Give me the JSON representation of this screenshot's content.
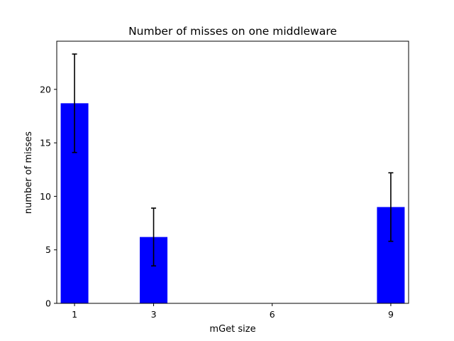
{
  "chart_data": {
    "type": "bar",
    "title": "Number of misses on one middleware",
    "xlabel": "mGet size",
    "ylabel": "number of misses",
    "categories": [
      "1",
      "3",
      "6",
      "9"
    ],
    "x": [
      1,
      3,
      6,
      9
    ],
    "series": [
      {
        "values": [
          18.7,
          6.2,
          0,
          9.0
        ],
        "error": [
          4.6,
          2.7,
          0,
          3.2
        ],
        "color": "#0000ff"
      }
    ],
    "ylim": [
      0,
      24.5
    ],
    "yticks": [
      0,
      5,
      10,
      15,
      20
    ],
    "ytick_labels": [
      "0",
      "5",
      "10",
      "15",
      "20"
    ],
    "grid": false,
    "legend": "none"
  }
}
